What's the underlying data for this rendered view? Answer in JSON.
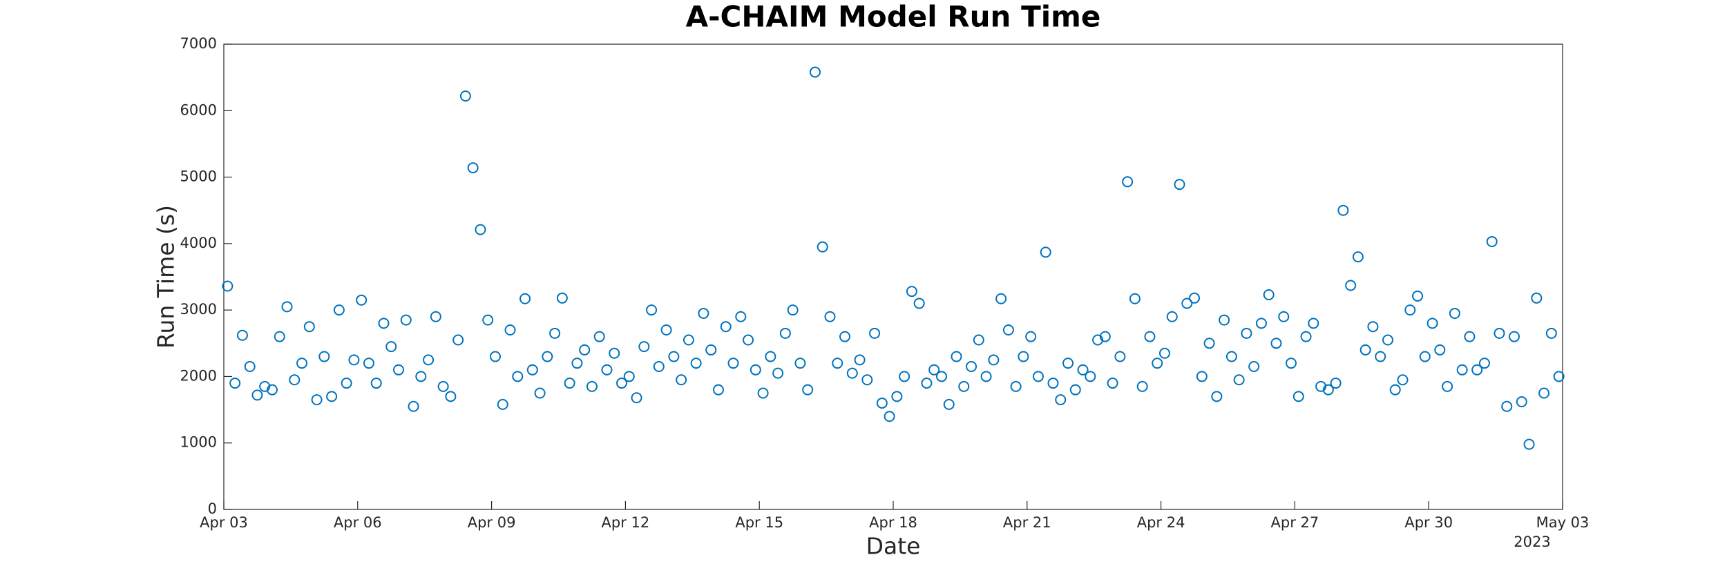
{
  "chart_data": {
    "type": "scatter",
    "title": "A-CHAIM Model Run Time",
    "xlabel": "Date",
    "ylabel": "Run Time (s)",
    "x_year_label": "2023",
    "color": "#0072BD",
    "grid": false,
    "xlim": [
      "2023-04-03",
      "2023-05-03"
    ],
    "xticks": [
      {
        "value": "2023-04-03",
        "label": "Apr 03"
      },
      {
        "value": "2023-04-06",
        "label": "Apr 06"
      },
      {
        "value": "2023-04-09",
        "label": "Apr 09"
      },
      {
        "value": "2023-04-12",
        "label": "Apr 12"
      },
      {
        "value": "2023-04-15",
        "label": "Apr 15"
      },
      {
        "value": "2023-04-18",
        "label": "Apr 18"
      },
      {
        "value": "2023-04-21",
        "label": "Apr 21"
      },
      {
        "value": "2023-04-24",
        "label": "Apr 24"
      },
      {
        "value": "2023-04-27",
        "label": "Apr 27"
      },
      {
        "value": "2023-04-30",
        "label": "Apr 30"
      },
      {
        "value": "2023-05-03",
        "label": "May 03"
      }
    ],
    "ylim": [
      0,
      7000
    ],
    "yticks": [
      0,
      1000,
      2000,
      3000,
      4000,
      5000,
      6000,
      7000
    ],
    "x": [
      "2023-04-03T02:00",
      "2023-04-03T06:00",
      "2023-04-03T10:00",
      "2023-04-03T14:00",
      "2023-04-03T18:00",
      "2023-04-03T22:00",
      "2023-04-04T02:00",
      "2023-04-04T06:00",
      "2023-04-04T10:00",
      "2023-04-04T14:00",
      "2023-04-04T18:00",
      "2023-04-04T22:00",
      "2023-04-05T02:00",
      "2023-04-05T06:00",
      "2023-04-05T10:00",
      "2023-04-05T14:00",
      "2023-04-05T18:00",
      "2023-04-05T22:00",
      "2023-04-06T02:00",
      "2023-04-06T06:00",
      "2023-04-06T10:00",
      "2023-04-06T14:00",
      "2023-04-06T18:00",
      "2023-04-06T22:00",
      "2023-04-07T02:00",
      "2023-04-07T06:00",
      "2023-04-07T10:00",
      "2023-04-07T14:00",
      "2023-04-07T18:00",
      "2023-04-07T22:00",
      "2023-04-08T02:00",
      "2023-04-08T06:00",
      "2023-04-08T10:00",
      "2023-04-08T14:00",
      "2023-04-08T18:00",
      "2023-04-08T22:00",
      "2023-04-09T02:00",
      "2023-04-09T06:00",
      "2023-04-09T10:00",
      "2023-04-09T14:00",
      "2023-04-09T18:00",
      "2023-04-09T22:00",
      "2023-04-10T02:00",
      "2023-04-10T06:00",
      "2023-04-10T10:00",
      "2023-04-10T14:00",
      "2023-04-10T18:00",
      "2023-04-10T22:00",
      "2023-04-11T02:00",
      "2023-04-11T06:00",
      "2023-04-11T10:00",
      "2023-04-11T14:00",
      "2023-04-11T18:00",
      "2023-04-11T22:00",
      "2023-04-12T02:00",
      "2023-04-12T06:00",
      "2023-04-12T10:00",
      "2023-04-12T14:00",
      "2023-04-12T18:00",
      "2023-04-12T22:00",
      "2023-04-13T02:00",
      "2023-04-13T06:00",
      "2023-04-13T10:00",
      "2023-04-13T14:00",
      "2023-04-13T18:00",
      "2023-04-13T22:00",
      "2023-04-14T02:00",
      "2023-04-14T06:00",
      "2023-04-14T10:00",
      "2023-04-14T14:00",
      "2023-04-14T18:00",
      "2023-04-14T22:00",
      "2023-04-15T02:00",
      "2023-04-15T06:00",
      "2023-04-15T10:00",
      "2023-04-15T14:00",
      "2023-04-15T18:00",
      "2023-04-15T22:00",
      "2023-04-16T02:00",
      "2023-04-16T06:00",
      "2023-04-16T10:00",
      "2023-04-16T14:00",
      "2023-04-16T18:00",
      "2023-04-16T22:00",
      "2023-04-17T02:00",
      "2023-04-17T06:00",
      "2023-04-17T10:00",
      "2023-04-17T14:00",
      "2023-04-17T18:00",
      "2023-04-17T22:00",
      "2023-04-18T02:00",
      "2023-04-18T06:00",
      "2023-04-18T10:00",
      "2023-04-18T14:00",
      "2023-04-18T18:00",
      "2023-04-18T22:00",
      "2023-04-19T02:00",
      "2023-04-19T06:00",
      "2023-04-19T10:00",
      "2023-04-19T14:00",
      "2023-04-19T18:00",
      "2023-04-19T22:00",
      "2023-04-20T02:00",
      "2023-04-20T06:00",
      "2023-04-20T10:00",
      "2023-04-20T14:00",
      "2023-04-20T18:00",
      "2023-04-20T22:00",
      "2023-04-21T02:00",
      "2023-04-21T06:00",
      "2023-04-21T10:00",
      "2023-04-21T14:00",
      "2023-04-21T18:00",
      "2023-04-21T22:00",
      "2023-04-22T02:00",
      "2023-04-22T06:00",
      "2023-04-22T10:00",
      "2023-04-22T14:00",
      "2023-04-22T18:00",
      "2023-04-22T22:00",
      "2023-04-23T02:00",
      "2023-04-23T06:00",
      "2023-04-23T10:00",
      "2023-04-23T14:00",
      "2023-04-23T18:00",
      "2023-04-23T22:00",
      "2023-04-24T02:00",
      "2023-04-24T06:00",
      "2023-04-24T10:00",
      "2023-04-24T14:00",
      "2023-04-24T18:00",
      "2023-04-24T22:00",
      "2023-04-25T02:00",
      "2023-04-25T06:00",
      "2023-04-25T10:00",
      "2023-04-25T14:00",
      "2023-04-25T18:00",
      "2023-04-25T22:00",
      "2023-04-26T02:00",
      "2023-04-26T06:00",
      "2023-04-26T10:00",
      "2023-04-26T14:00",
      "2023-04-26T18:00",
      "2023-04-26T22:00",
      "2023-04-27T02:00",
      "2023-04-27T06:00",
      "2023-04-27T10:00",
      "2023-04-27T14:00",
      "2023-04-27T18:00",
      "2023-04-27T22:00",
      "2023-04-28T02:00",
      "2023-04-28T06:00",
      "2023-04-28T10:00",
      "2023-04-28T14:00",
      "2023-04-28T18:00",
      "2023-04-28T22:00",
      "2023-04-29T02:00",
      "2023-04-29T06:00",
      "2023-04-29T10:00",
      "2023-04-29T14:00",
      "2023-04-29T18:00",
      "2023-04-29T22:00",
      "2023-04-30T02:00",
      "2023-04-30T06:00",
      "2023-04-30T10:00",
      "2023-04-30T14:00",
      "2023-04-30T18:00",
      "2023-04-30T22:00",
      "2023-05-01T02:00",
      "2023-05-01T06:00",
      "2023-05-01T10:00",
      "2023-05-01T14:00",
      "2023-05-01T18:00",
      "2023-05-01T22:00",
      "2023-05-02T02:00",
      "2023-05-02T06:00",
      "2023-05-02T10:00",
      "2023-05-02T14:00",
      "2023-05-02T18:00",
      "2023-05-02T22:00"
    ],
    "values": [
      3360,
      1900,
      2620,
      2150,
      1720,
      1850,
      1800,
      2600,
      3050,
      1950,
      2200,
      2750,
      1650,
      2300,
      1700,
      3000,
      1900,
      2250,
      3150,
      2200,
      1900,
      2800,
      2450,
      2100,
      2850,
      1550,
      2000,
      2250,
      2900,
      1850,
      1700,
      2550,
      6220,
      5140,
      4210,
      2850,
      2300,
      1580,
      2700,
      2000,
      3170,
      2100,
      1750,
      2300,
      2650,
      3180,
      1900,
      2200,
      2400,
      1850,
      2600,
      2100,
      2350,
      1900,
      2000,
      1680,
      2450,
      3000,
      2150,
      2700,
      2300,
      1950,
      2550,
      2200,
      2950,
      2400,
      1800,
      2750,
      2200,
      2900,
      2550,
      2100,
      1750,
      2300,
      2050,
      2650,
      3000,
      2200,
      1800,
      6580,
      3950,
      2900,
      2200,
      2600,
      2050,
      2250,
      1950,
      2650,
      1600,
      1400,
      1700,
      2000,
      3280,
      3100,
      1900,
      2100,
      2000,
      1580,
      2300,
      1850,
      2150,
      2550,
      2000,
      2250,
      3170,
      2700,
      1850,
      2300,
      2600,
      2000,
      3870,
      1900,
      1650,
      2200,
      1800,
      2100,
      2000,
      2550,
      2600,
      1900,
      2300,
      4930,
      3170,
      1850,
      2600,
      2200,
      2350,
      2900,
      4890,
      3100,
      3180,
      2000,
      2500,
      1700,
      2850,
      2300,
      1950,
      2650,
      2150,
      2800,
      3230,
      2500,
      2900,
      2200,
      1700,
      2600,
      2800,
      1850,
      1800,
      1900,
      4500,
      3370,
      3800,
      2400,
      2750,
      2300,
      2550,
      1800,
      1950,
      3000,
      3210,
      2300,
      2800,
      2400,
      1850,
      2950,
      2100,
      2600,
      2100,
      2200,
      4030,
      2650,
      1550,
      2600,
      1620,
      980,
      3180,
      1750,
      2650,
      2000
    ]
  }
}
